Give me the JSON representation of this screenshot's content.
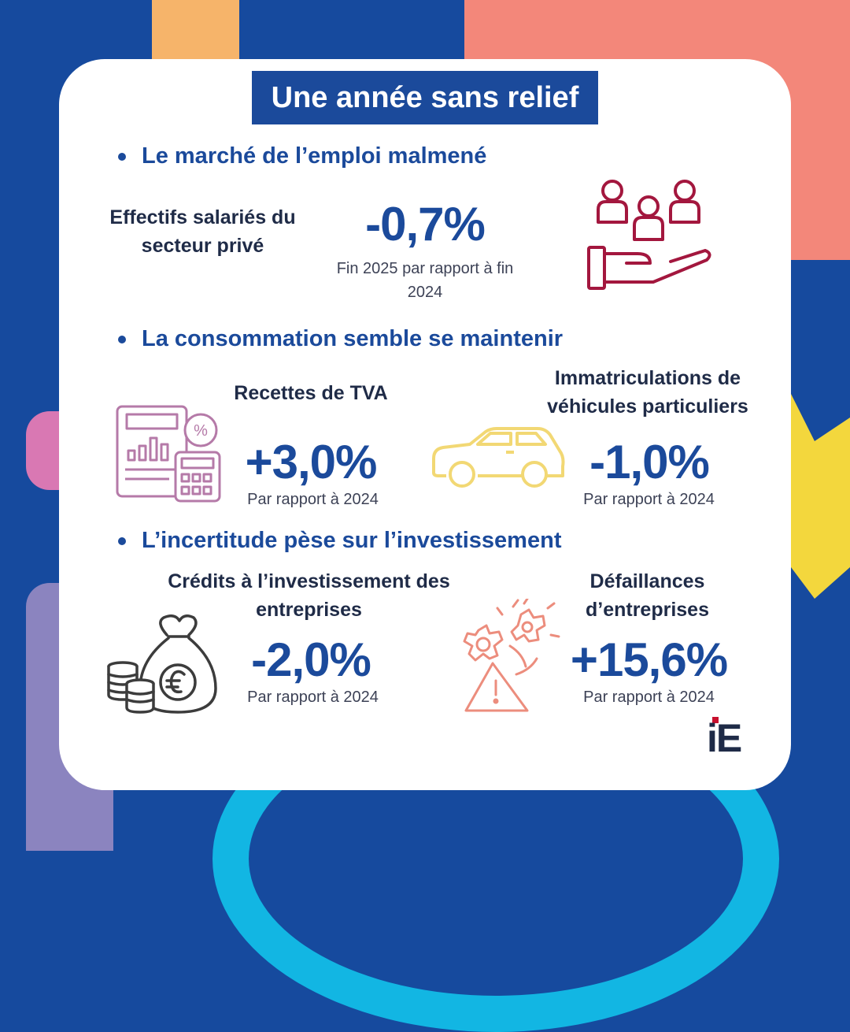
{
  "title": "Une année sans relief",
  "sections": [
    {
      "heading": "Le marché de l’emploi malmené",
      "items": [
        {
          "label": "Effectifs salariés du secteur privé",
          "value": "-0,7%",
          "note": "Fin 2025 par rapport à fin 2024",
          "icon": "people-in-hand-icon"
        }
      ]
    },
    {
      "heading": "La consommation semble se maintenir",
      "items": [
        {
          "label": "Recettes de TVA",
          "value": "+3,0%",
          "note": "Par rapport à 2024",
          "icon": "calculator-chart-icon"
        },
        {
          "label": "Immatriculations de véhicules particuliers",
          "value": "-1,0%",
          "note": "Par rapport à 2024",
          "icon": "car-icon"
        }
      ]
    },
    {
      "heading": "L’incertitude pèse sur l’investissement",
      "items": [
        {
          "label": "Crédits à l’investissement des entreprises",
          "value": "-2,0%",
          "note": "Par rapport à 2024",
          "icon": "money-bag-euro-icon"
        },
        {
          "label": "Défaillances d’entreprises",
          "value": "+15,6%",
          "note": "Par rapport à 2024",
          "icon": "broken-gear-warning-icon"
        }
      ]
    }
  ],
  "logo": "iE",
  "colors": {
    "background": "#164a9e",
    "accent_blue": "#1b4a9b",
    "people_icon": "#a3173e",
    "calculator_icon": "#b57aa8",
    "car_icon": "#f2d874",
    "money_icon": "#3c3c3c",
    "warning_icon": "#ec8d7d",
    "logo_red": "#c8102e"
  }
}
